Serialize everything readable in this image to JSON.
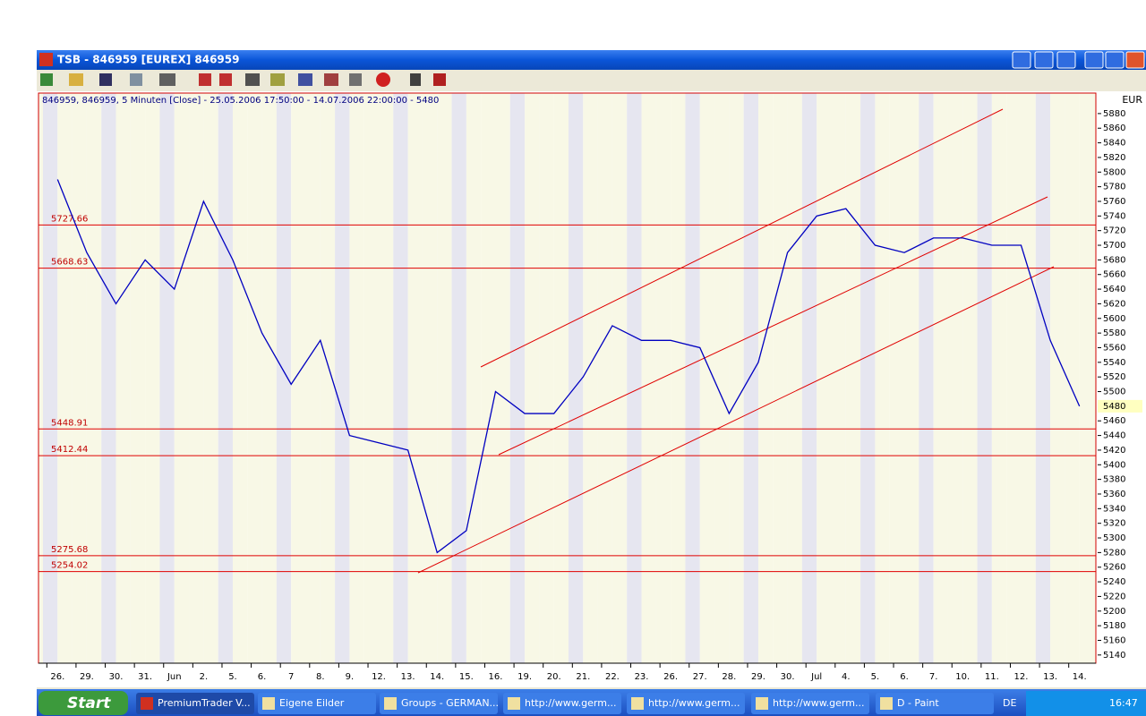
{
  "window": {
    "title": "TSB - 846959 [EUREX] 846959"
  },
  "chart_data": {
    "type": "line",
    "title": "846959, 846959, 5 Minuten [Close] - 25.05.2006 17:50:00 - 14.07.2006 22:00:00 - 5480",
    "y_label": "EUR",
    "categories": [
      "26.",
      "29.",
      "30.",
      "31.",
      "Jun",
      "2.",
      "5.",
      "6.",
      "7",
      "8.",
      "9.",
      "12.",
      "13.",
      "14.",
      "15.",
      "16.",
      "19.",
      "20.",
      "21.",
      "22.",
      "23.",
      "26.",
      "27.",
      "28.",
      "29.",
      "30.",
      "Jul",
      "4.",
      "5.",
      "6.",
      "7.",
      "10.",
      "11.",
      "12.",
      "13.",
      "14."
    ],
    "values": [
      5790,
      5690,
      5620,
      5680,
      5640,
      5760,
      5680,
      5580,
      5510,
      5570,
      5440,
      5430,
      5420,
      5280,
      5310,
      5500,
      5470,
      5470,
      5520,
      5590,
      5570,
      5570,
      5560,
      5470,
      5540,
      5690,
      5740,
      5750,
      5700,
      5690,
      5710,
      5710,
      5700,
      5700,
      5570,
      5480
    ],
    "color": "#0000c0",
    "last_value": 5480,
    "levels": [
      5727.66,
      5668.63,
      5448.91,
      5412.44,
      5275.68,
      5254.02
    ],
    "level_color": "#e00000",
    "ylim": [
      5130,
      5908
    ],
    "yticks": [
      5140,
      5160,
      5180,
      5200,
      5220,
      5240,
      5260,
      5280,
      5300,
      5320,
      5340,
      5360,
      5380,
      5400,
      5420,
      5440,
      5460,
      5480,
      5500,
      5520,
      5540,
      5560,
      5580,
      5600,
      5620,
      5640,
      5660,
      5680,
      5700,
      5720,
      5740,
      5760,
      5780,
      5800,
      5820,
      5840,
      5860,
      5880
    ],
    "grid": false
  },
  "taskbar": {
    "start": "Start",
    "items": [
      "PremiumTrader V...",
      "Eigene Eilder",
      "Groups - GERMAN...",
      "http://www.germ...",
      "http://www.germ...",
      "http://www.germ...",
      "D - Paint"
    ],
    "language": "DE",
    "clock": "16:47"
  }
}
